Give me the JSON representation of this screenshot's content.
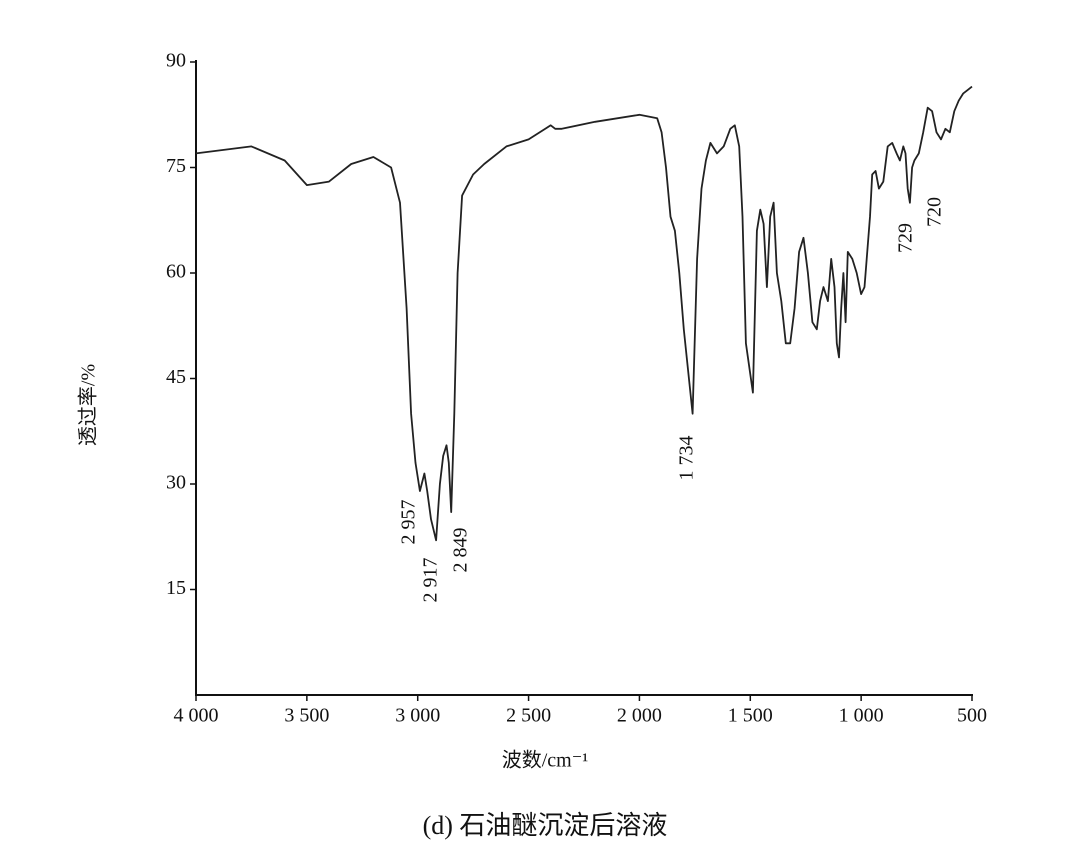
{
  "chart_data": {
    "type": "line",
    "caption": "(d) 石油醚沉淀后溶液",
    "x_label": "波数/cm⁻¹",
    "y_label": "透过率/%",
    "annotations": [
      "2 957",
      "2 917",
      "2 849",
      "1 734",
      "729",
      "720"
    ],
    "color": "#222222",
    "xlim": [
      4000,
      500
    ],
    "xticks": [
      {
        "value": 4000,
        "label": "4 000"
      },
      {
        "value": 3500,
        "label": "3 500"
      },
      {
        "value": 3000,
        "label": "3 000"
      },
      {
        "value": 2500,
        "label": "2 500"
      },
      {
        "value": 2000,
        "label": "2 000"
      },
      {
        "value": 1500,
        "label": "1 500"
      },
      {
        "value": 1000,
        "label": "1 000"
      },
      500
    ],
    "ylim": [
      0,
      90
    ],
    "yticks": [
      15,
      30,
      45,
      60,
      75,
      90
    ],
    "x": [
      4000,
      3750,
      3600,
      3500,
      3400,
      3300,
      3200,
      3120,
      3080,
      3050,
      3030,
      3010,
      2990,
      2970,
      2957,
      2940,
      2917,
      2900,
      2885,
      2870,
      2860,
      2849,
      2835,
      2820,
      2800,
      2750,
      2700,
      2600,
      2500,
      2400,
      2380,
      2350,
      2200,
      2000,
      1920,
      1900,
      1880,
      1860,
      1840,
      1820,
      1800,
      1760,
      1740,
      1720,
      1700,
      1680,
      1650,
      1620,
      1590,
      1570,
      1550,
      1535,
      1520,
      1488,
      1470,
      1455,
      1440,
      1425,
      1410,
      1395,
      1380,
      1360,
      1340,
      1320,
      1300,
      1280,
      1260,
      1240,
      1220,
      1200,
      1185,
      1170,
      1150,
      1135,
      1120,
      1110,
      1100,
      1090,
      1080,
      1070,
      1060,
      1040,
      1020,
      1000,
      985,
      975,
      960,
      950,
      935,
      920,
      900,
      880,
      860,
      840,
      825,
      810,
      800,
      790,
      780,
      770,
      760,
      740,
      720,
      700,
      680,
      660,
      640,
      620,
      600,
      580,
      560,
      540,
      520,
      500
    ],
    "values": [
      77,
      78,
      76,
      72.5,
      73,
      75.5,
      76.5,
      75,
      70,
      55,
      40,
      33,
      29,
      31.5,
      29,
      25,
      22,
      30,
      34,
      35.5,
      33,
      26,
      40,
      60,
      71,
      74,
      75.5,
      78,
      79,
      81,
      80.5,
      80.5,
      81.5,
      82.5,
      82,
      80,
      75,
      68,
      66,
      60,
      52,
      40,
      62,
      72,
      76,
      78.5,
      77,
      78,
      80.5,
      81,
      78,
      68,
      50,
      43,
      66,
      69,
      67,
      58,
      68,
      70,
      60,
      56,
      50,
      50,
      55,
      63,
      65,
      60,
      53,
      52,
      56,
      58,
      56,
      62,
      58,
      50,
      48,
      55,
      60,
      53,
      63,
      62,
      60,
      57,
      58,
      62,
      68,
      74,
      74.5,
      72,
      73,
      78,
      78.5,
      77,
      76,
      78,
      77,
      72,
      70,
      75,
      76,
      77,
      80,
      83.5,
      83,
      80,
      79,
      80.5,
      80,
      83,
      84.5,
      85.5,
      86,
      86.5
    ]
  }
}
